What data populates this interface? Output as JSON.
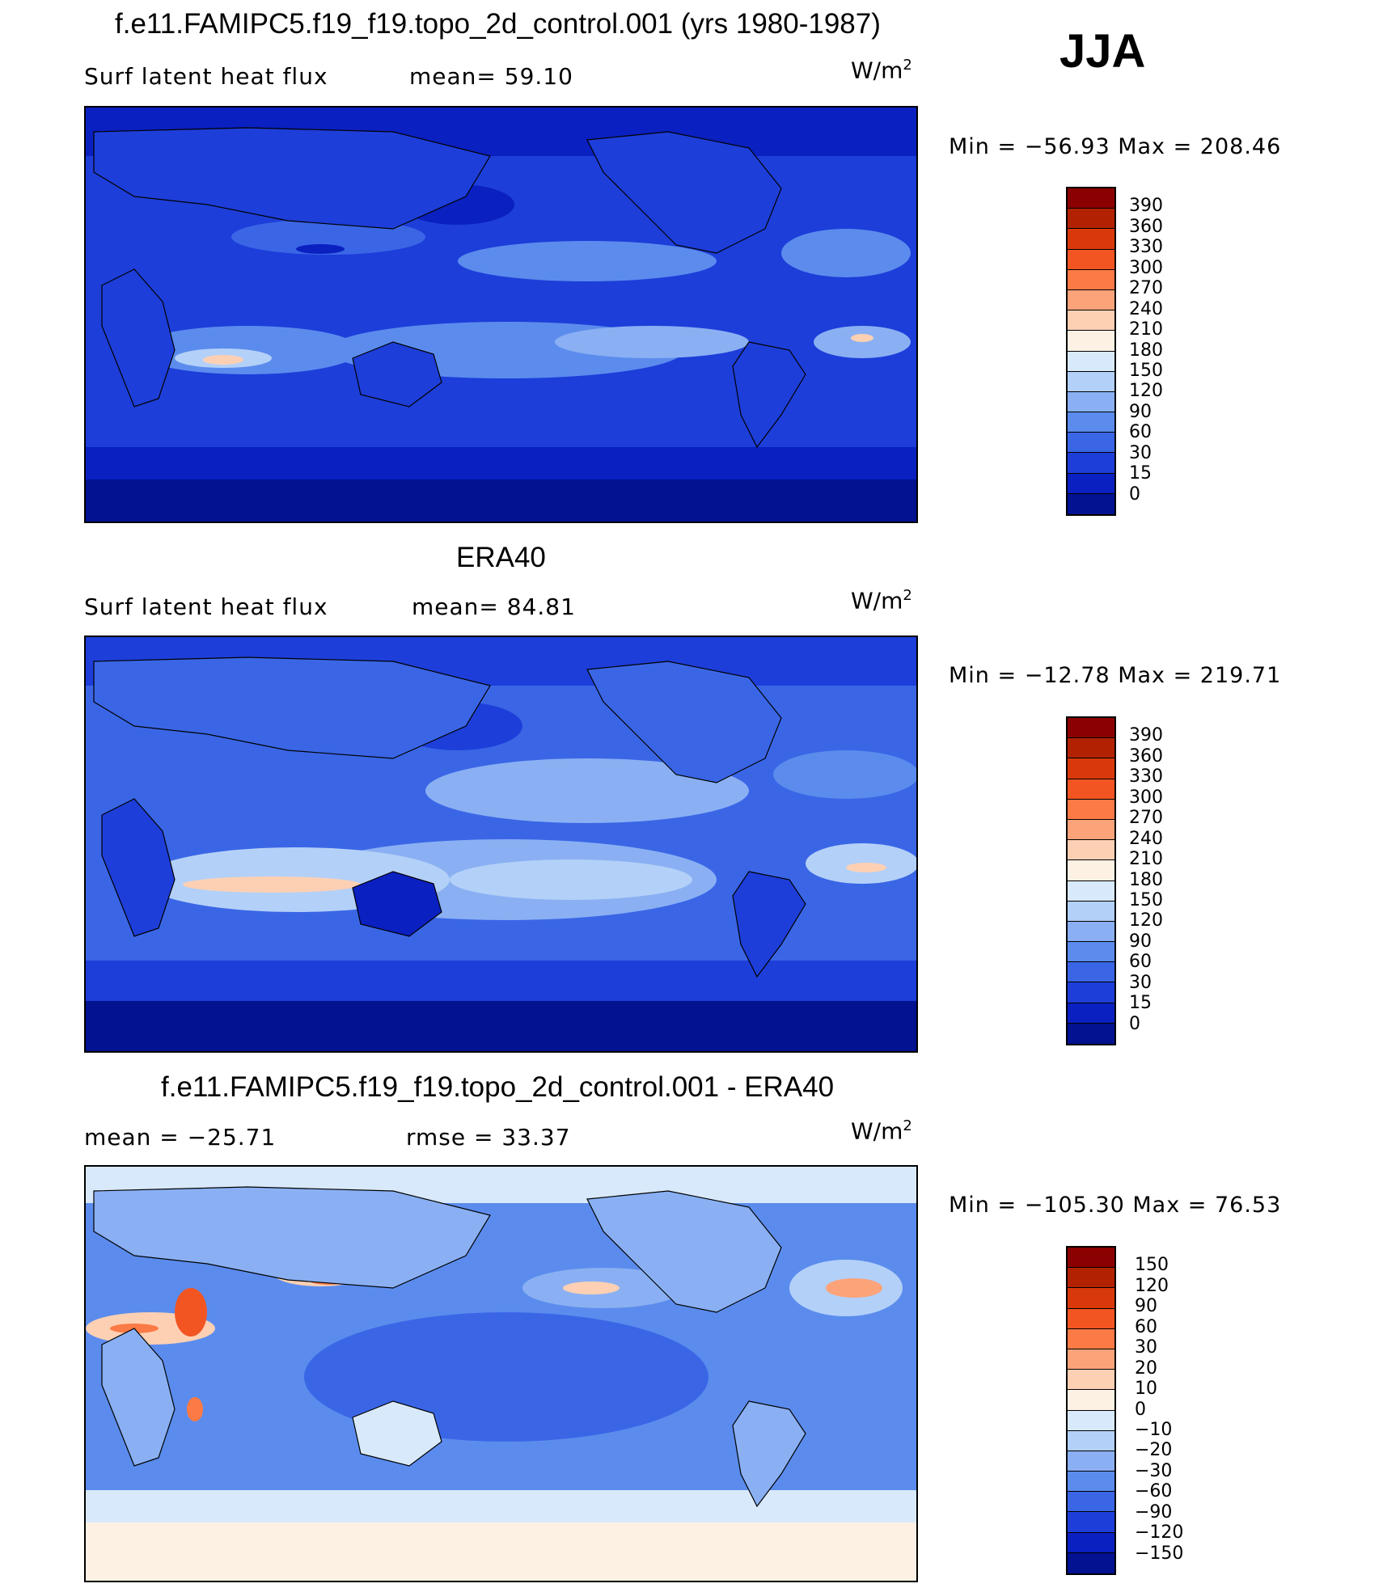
{
  "season": "JJA",
  "panels": [
    {
      "id": "model",
      "title": "f.e11.FAMIPC5.f19_f19.topo_2d_control.001 (yrs 1980-1987)",
      "variable": "Surf latent heat flux",
      "stat1": "mean=  59.10",
      "stat2": "",
      "unit_base": "W/m",
      "unit_exp": "2",
      "minmax": "Min = −56.93 Max = 208.46",
      "colorbar_labels": [
        "390",
        "360",
        "330",
        "300",
        "270",
        "240",
        "210",
        "180",
        "150",
        "120",
        "90",
        "60",
        "30",
        "15",
        "0"
      ],
      "colorbar_colors": [
        "#8b0000",
        "#b22200",
        "#d9380a",
        "#f25522",
        "#fb7a45",
        "#fca37a",
        "#fdd0b4",
        "#fdf1e4",
        "#d8e9fb",
        "#b3d0f8",
        "#8ab0f3",
        "#5b8ced",
        "#3a66e6",
        "#1d3ed9",
        "#0a20c0",
        "#021290"
      ]
    },
    {
      "id": "obs",
      "title": "ERA40",
      "variable": "Surf latent heat flux",
      "stat1": "mean=  84.81",
      "stat2": "",
      "unit_base": "W/m",
      "unit_exp": "2",
      "minmax": "Min = −12.78 Max = 219.71",
      "colorbar_labels": [
        "390",
        "360",
        "330",
        "300",
        "270",
        "240",
        "210",
        "180",
        "150",
        "120",
        "90",
        "60",
        "30",
        "15",
        "0"
      ],
      "colorbar_colors": [
        "#8b0000",
        "#b22200",
        "#d9380a",
        "#f25522",
        "#fb7a45",
        "#fca37a",
        "#fdd0b4",
        "#fdf1e4",
        "#d8e9fb",
        "#b3d0f8",
        "#8ab0f3",
        "#5b8ced",
        "#3a66e6",
        "#1d3ed9",
        "#0a20c0",
        "#021290"
      ]
    },
    {
      "id": "diff",
      "title": "f.e11.FAMIPC5.f19_f19.topo_2d_control.001 - ERA40",
      "variable": "mean = −25.71",
      "stat1": "rmse =  33.37",
      "stat2": "",
      "unit_base": "W/m",
      "unit_exp": "2",
      "minmax": "Min = −105.30 Max =  76.53",
      "colorbar_labels": [
        "150",
        "120",
        "90",
        "60",
        "30",
        "20",
        "10",
        "0",
        "−10",
        "−20",
        "−30",
        "−60",
        "−90",
        "−120",
        "−150"
      ],
      "colorbar_colors": [
        "#8b0000",
        "#b22200",
        "#d9380a",
        "#f25522",
        "#fb7a45",
        "#fca37a",
        "#fdd0b4",
        "#fdf1e4",
        "#d8e9fb",
        "#b3d0f8",
        "#8ab0f3",
        "#5b8ced",
        "#3a66e6",
        "#1d3ed9",
        "#0a20c0",
        "#021290"
      ]
    }
  ]
}
